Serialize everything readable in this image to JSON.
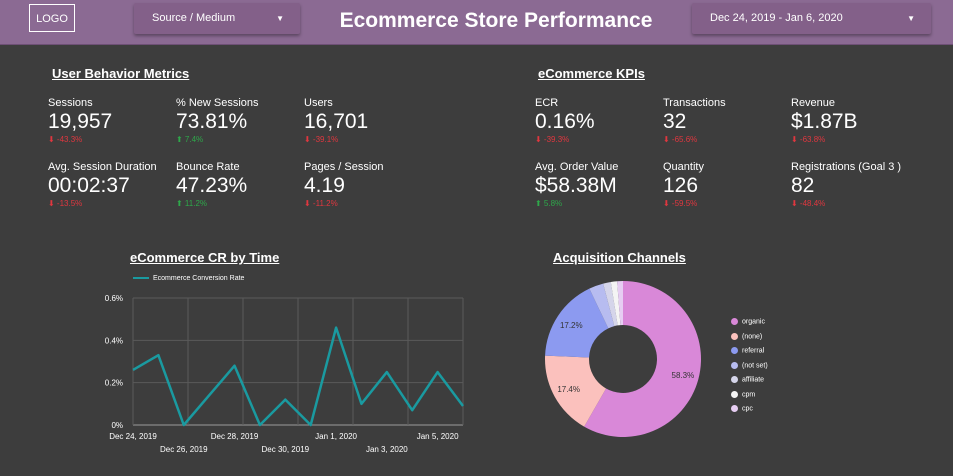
{
  "header": {
    "logo": "LOGO",
    "source_dropdown": "Source / Medium",
    "title": "Ecommerce Store Performance",
    "date_range": "Dec 24, 2019 - Jan 6, 2020"
  },
  "user_behavior": {
    "title": "User Behavior Metrics",
    "metrics": [
      {
        "label": "Sessions",
        "value": "19,957",
        "delta": "⬇ -43.3%",
        "trend": "down"
      },
      {
        "label": "% New Sessions",
        "value": "73.81%",
        "delta": "⬆ 7.4%",
        "trend": "up"
      },
      {
        "label": "Users",
        "value": "16,701",
        "delta": "⬇ -39.1%",
        "trend": "down"
      },
      {
        "label": "Avg. Session Duration",
        "value": "00:02:37",
        "delta": "⬇ -13.5%",
        "trend": "down"
      },
      {
        "label": "Bounce Rate",
        "value": "47.23%",
        "delta": "⬆ 11.2%",
        "trend": "up"
      },
      {
        "label": "Pages / Session",
        "value": "4.19",
        "delta": "⬇ -11.2%",
        "trend": "down"
      }
    ]
  },
  "ecommerce_kpis": {
    "title": "eCommerce KPIs",
    "metrics": [
      {
        "label": "ECR",
        "value": "0.16%",
        "delta": "⬇ -39.3%",
        "trend": "down"
      },
      {
        "label": "Transactions",
        "value": "32",
        "delta": "⬇ -65.6%",
        "trend": "down"
      },
      {
        "label": "Revenue",
        "value": "$1.87B",
        "delta": "⬇ -63.8%",
        "trend": "down"
      },
      {
        "label": "Avg. Order Value",
        "value": "$58.38M",
        "delta": "⬆ 5.8%",
        "trend": "up"
      },
      {
        "label": "Quantity",
        "value": "126",
        "delta": "⬇ -59.5%",
        "trend": "down"
      },
      {
        "label": "Registrations (Goal 3 )",
        "value": "82",
        "delta": "⬇ -48.4%",
        "trend": "down"
      }
    ]
  },
  "chart_data": [
    {
      "type": "line",
      "title": "eCommerce CR by Time",
      "series": [
        {
          "name": "Ecommerce Conversion Rate",
          "color": "#1a9aa0",
          "values": [
            0.26,
            0.33,
            0.0,
            0.14,
            0.28,
            0.0,
            0.12,
            0.0,
            0.46,
            0.1,
            0.25,
            0.07,
            0.25,
            0.09
          ]
        }
      ],
      "x": [
        "Dec 24",
        "Dec 25",
        "Dec 26",
        "Dec 27",
        "Dec 28",
        "Dec 29",
        "Dec 30",
        "Dec 31",
        "Jan 1",
        "Jan 2",
        "Jan 3",
        "Jan 4",
        "Jan 5",
        "Jan 6"
      ],
      "x_tick_labels_top": [
        "Dec 24, 2019",
        "Dec 28, 2019",
        "Jan 1, 2020",
        "Jan 5, 2020"
      ],
      "x_tick_labels_bottom": [
        "Dec 26, 2019",
        "Dec 30, 2019",
        "Jan 3, 2020"
      ],
      "y_tick_labels": [
        "0%",
        "0.2%",
        "0.4%",
        "0.6%"
      ],
      "ylim": [
        0,
        0.6
      ],
      "ylabel": "",
      "xlabel": "",
      "grid": true
    },
    {
      "type": "pie",
      "title": "Acquisition Channels",
      "donut": true,
      "categories": [
        "organic",
        "(none)",
        "referral",
        "(not set)",
        "affiliate",
        "cpm",
        "cpc"
      ],
      "values": [
        58.3,
        17.4,
        17.2,
        3.0,
        1.6,
        1.3,
        1.2
      ],
      "data_labels": [
        "58.3%",
        "17.4%",
        "17.2%",
        "",
        "",
        "",
        ""
      ],
      "colors": [
        "#d988d8",
        "#fbc1bd",
        "#8c9af0",
        "#b7bcf0",
        "#d5d5ea",
        "#f4f4f4",
        "#e6cdf2"
      ],
      "legend_position": "right"
    }
  ]
}
